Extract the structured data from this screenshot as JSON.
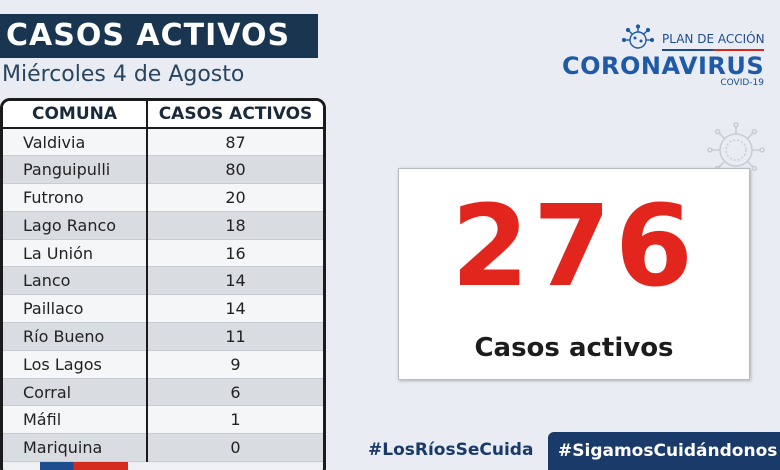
{
  "header": {
    "title": "CASOS ACTIVOS",
    "date": "Miércoles 4 de Agosto"
  },
  "table": {
    "columns": [
      "COMUNA",
      "CASOS ACTIVOS"
    ],
    "rows": [
      {
        "comuna": "Valdivia",
        "casos": "87"
      },
      {
        "comuna": "Panguipulli",
        "casos": "80"
      },
      {
        "comuna": "Futrono",
        "casos": "20"
      },
      {
        "comuna": "Lago Ranco",
        "casos": "18"
      },
      {
        "comuna": "La Unión",
        "casos": "16"
      },
      {
        "comuna": "Lanco",
        "casos": "14"
      },
      {
        "comuna": "Paillaco",
        "casos": "14"
      },
      {
        "comuna": "Río Bueno",
        "casos": "11"
      },
      {
        "comuna": "Los Lagos",
        "casos": "9"
      },
      {
        "comuna": "Corral",
        "casos": "6"
      },
      {
        "comuna": "Máfil",
        "casos": "1"
      },
      {
        "comuna": "Mariquina",
        "casos": "0"
      }
    ]
  },
  "logo": {
    "plan": "PLAN DE ACCIÓN",
    "name": "CORONAVIRUS",
    "sub": "COVID-19"
  },
  "summary": {
    "total": "276",
    "label": "Casos activos"
  },
  "footer": {
    "hashtag_1": "#LosRíosSeCuida",
    "hashtag_2": "#SigamosCuidándonos"
  },
  "colors": {
    "banner": "#1a3550",
    "accent_red": "#e3261d",
    "logo_blue": "#1e5aa8"
  },
  "icons": [
    "virus-icon"
  ]
}
